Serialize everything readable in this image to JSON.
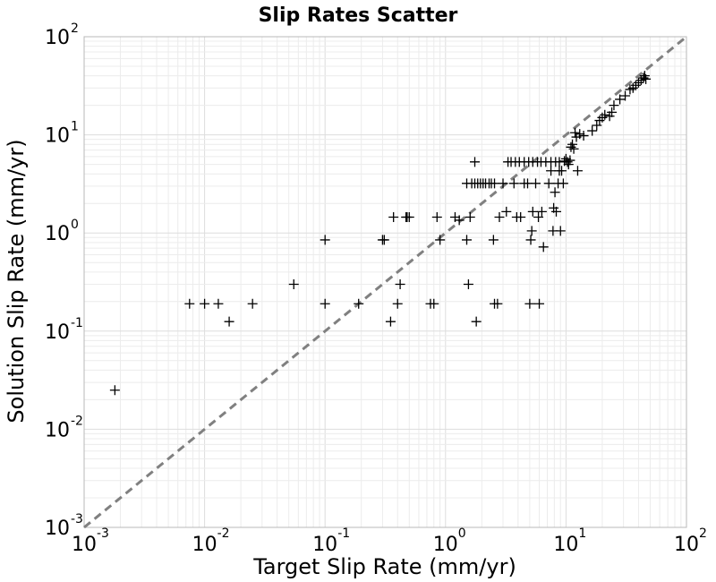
{
  "chart_data": {
    "type": "scatter",
    "title": "Slip Rates Scatter",
    "xlabel": "Target Slip Rate (mm/yr)",
    "ylabel": "Solution Slip Rate (mm/yr)",
    "xscale": "log",
    "yscale": "log",
    "xlim": [
      0.001,
      100
    ],
    "ylim": [
      0.001,
      100
    ],
    "grid": true,
    "marker": "plus",
    "reference_line": {
      "style": "dashed",
      "color": "#808080",
      "from": [
        0.001,
        0.001
      ],
      "to": [
        100,
        100
      ]
    },
    "x_ticks": [
      {
        "base": "10",
        "exp": "-3",
        "value": 0.001
      },
      {
        "base": "10",
        "exp": "-2",
        "value": 0.01
      },
      {
        "base": "10",
        "exp": "-1",
        "value": 0.1
      },
      {
        "base": "10",
        "exp": "0",
        "value": 1
      },
      {
        "base": "10",
        "exp": "1",
        "value": 10
      },
      {
        "base": "10",
        "exp": "2",
        "value": 100
      }
    ],
    "y_ticks": [
      {
        "base": "10",
        "exp": "-3",
        "value": 0.001
      },
      {
        "base": "10",
        "exp": "-2",
        "value": 0.01
      },
      {
        "base": "10",
        "exp": "-1",
        "value": 0.1
      },
      {
        "base": "10",
        "exp": "0",
        "value": 1
      },
      {
        "base": "10",
        "exp": "1",
        "value": 10
      },
      {
        "base": "10",
        "exp": "2",
        "value": 100
      }
    ],
    "points": [
      [
        0.0018,
        0.025
      ],
      [
        0.0075,
        0.19
      ],
      [
        0.01,
        0.19
      ],
      [
        0.013,
        0.19
      ],
      [
        0.016,
        0.125
      ],
      [
        0.025,
        0.19
      ],
      [
        0.055,
        0.3
      ],
      [
        0.1,
        0.19
      ],
      [
        0.1,
        0.85
      ],
      [
        0.19,
        0.19
      ],
      [
        0.3,
        0.85
      ],
      [
        0.31,
        0.85
      ],
      [
        0.35,
        0.125
      ],
      [
        0.37,
        1.45
      ],
      [
        0.4,
        0.19
      ],
      [
        0.42,
        0.3
      ],
      [
        0.47,
        1.45
      ],
      [
        0.48,
        1.45
      ],
      [
        0.5,
        1.45
      ],
      [
        0.75,
        0.19
      ],
      [
        0.8,
        0.19
      ],
      [
        0.85,
        1.45
      ],
      [
        0.9,
        0.85
      ],
      [
        1.2,
        1.45
      ],
      [
        1.3,
        1.35
      ],
      [
        1.5,
        0.85
      ],
      [
        1.55,
        0.3
      ],
      [
        1.6,
        1.45
      ],
      [
        1.8,
        0.125
      ],
      [
        1.75,
        5.3
      ],
      [
        1.5,
        3.2
      ],
      [
        1.65,
        3.2
      ],
      [
        1.75,
        3.2
      ],
      [
        1.85,
        3.2
      ],
      [
        1.95,
        3.2
      ],
      [
        2.05,
        3.2
      ],
      [
        2.15,
        3.2
      ],
      [
        2.3,
        3.2
      ],
      [
        2.4,
        3.2
      ],
      [
        2.55,
        3.2
      ],
      [
        2.5,
        0.85
      ],
      [
        2.55,
        0.19
      ],
      [
        2.7,
        0.19
      ],
      [
        2.8,
        1.45
      ],
      [
        3.0,
        3.2
      ],
      [
        3.2,
        1.65
      ],
      [
        3.3,
        5.3
      ],
      [
        3.5,
        5.3
      ],
      [
        3.8,
        5.3
      ],
      [
        4.1,
        5.3
      ],
      [
        4.5,
        5.3
      ],
      [
        4.9,
        5.3
      ],
      [
        5.3,
        5.3
      ],
      [
        5.8,
        5.3
      ],
      [
        6.2,
        5.3
      ],
      [
        6.8,
        5.3
      ],
      [
        7.5,
        5.3
      ],
      [
        8.2,
        5.3
      ],
      [
        8.8,
        5.3
      ],
      [
        3.7,
        3.2
      ],
      [
        3.9,
        1.45
      ],
      [
        4.2,
        1.45
      ],
      [
        4.5,
        3.2
      ],
      [
        4.8,
        3.2
      ],
      [
        5.0,
        0.19
      ],
      [
        5.1,
        0.85
      ],
      [
        5.2,
        1.05
      ],
      [
        5.3,
        1.65
      ],
      [
        5.6,
        3.2
      ],
      [
        5.9,
        1.45
      ],
      [
        6.0,
        0.19
      ],
      [
        6.3,
        1.65
      ],
      [
        6.5,
        0.72
      ],
      [
        7.2,
        3.2
      ],
      [
        7.5,
        4.3
      ],
      [
        7.8,
        1.05
      ],
      [
        7.9,
        1.8
      ],
      [
        8.1,
        2.6
      ],
      [
        8.3,
        1.65
      ],
      [
        8.6,
        3.2
      ],
      [
        8.8,
        4.3
      ],
      [
        9.0,
        1.05
      ],
      [
        9.2,
        4.3
      ],
      [
        9.5,
        3.2
      ],
      [
        9.7,
        5.4
      ],
      [
        10.0,
        5.7
      ],
      [
        10.3,
        5.3
      ],
      [
        10.5,
        5.0
      ],
      [
        10.8,
        5.5
      ],
      [
        11.0,
        7.5
      ],
      [
        11.3,
        8.0
      ],
      [
        11.6,
        7.2
      ],
      [
        11.9,
        10.5
      ],
      [
        12.2,
        9.5
      ],
      [
        12.5,
        4.3
      ],
      [
        13.0,
        10.2
      ],
      [
        14.0,
        9.8
      ],
      [
        16.5,
        11.0
      ],
      [
        18.0,
        12.5
      ],
      [
        19.0,
        14.0
      ],
      [
        20.0,
        15.0
      ],
      [
        21.0,
        16.0
      ],
      [
        23.0,
        15.5
      ],
      [
        24.0,
        17.0
      ],
      [
        25.0,
        20.0
      ],
      [
        28.0,
        23.0
      ],
      [
        31.0,
        25.0
      ],
      [
        34.0,
        29.0
      ],
      [
        36.0,
        30.0
      ],
      [
        38.0,
        32.0
      ],
      [
        40.0,
        34.0
      ],
      [
        42.0,
        36.0
      ],
      [
        44.0,
        38.0
      ],
      [
        45.0,
        40.0
      ],
      [
        46.0,
        37.0
      ]
    ]
  }
}
